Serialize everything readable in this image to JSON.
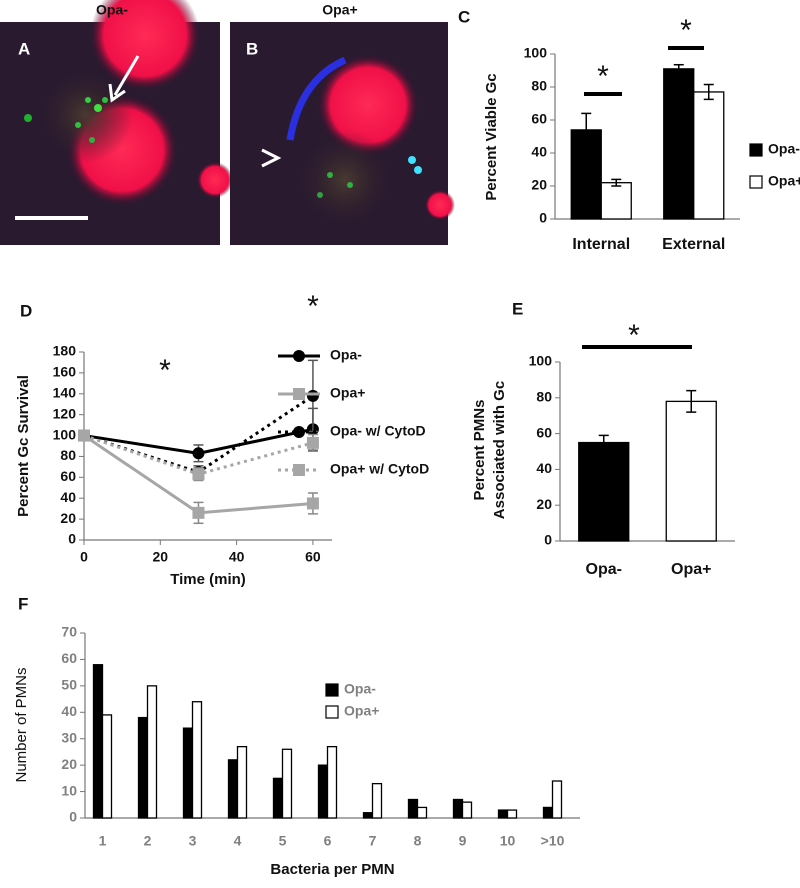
{
  "panels": [
    {
      "letter": "A",
      "title": "Opa-"
    },
    {
      "letter": "B",
      "title": "Opa+"
    }
  ],
  "chart_data": [
    {
      "type": "bar",
      "panel": "C",
      "ylabel": "Percent Viable Gc",
      "categories": [
        "Internal",
        "External"
      ],
      "series": [
        {
          "name": "Opa-",
          "color": "#000000",
          "values": [
            54,
            91
          ],
          "errors": [
            10,
            2.5
          ]
        },
        {
          "name": "Opa+",
          "color": "#ffffff",
          "values": [
            22,
            77
          ],
          "errors": [
            2,
            4.5
          ]
        }
      ],
      "ylim": [
        0,
        100
      ],
      "yticks": [
        0,
        20,
        40,
        60,
        80,
        100
      ],
      "legend": "right",
      "annotations": [
        "*",
        "*"
      ]
    },
    {
      "type": "line",
      "panel": "D",
      "ylabel": "Percent Gc Survival",
      "xlabel": "Time (min)",
      "x": [
        0,
        30,
        60
      ],
      "series": [
        {
          "name": "Opa-",
          "color": "#000000",
          "marker": "circle",
          "dashed": false,
          "values": [
            100,
            83,
            106
          ],
          "errors": [
            0,
            8,
            20
          ]
        },
        {
          "name": "Opa+",
          "color": "#a6a6a6",
          "marker": "square",
          "dashed": false,
          "values": [
            100,
            26,
            35
          ],
          "errors": [
            0,
            10,
            10
          ]
        },
        {
          "name": "Opa- w/ CytoD",
          "color": "#000000",
          "marker": "circle",
          "dashed": true,
          "values": [
            100,
            65,
            138
          ],
          "errors": [
            0,
            6,
            34
          ]
        },
        {
          "name": "Opa+ w/ CytoD",
          "color": "#a6a6a6",
          "marker": "square",
          "dashed": true,
          "values": [
            100,
            63,
            93
          ],
          "errors": [
            0,
            6,
            8
          ]
        }
      ],
      "xlim": [
        0,
        65
      ],
      "xticks": [
        0,
        20,
        40,
        60
      ],
      "ylim": [
        0,
        180
      ],
      "yticks": [
        0,
        20,
        40,
        60,
        80,
        100,
        120,
        140,
        160,
        180
      ],
      "legend": "right",
      "annotations": [
        "*",
        "*"
      ]
    },
    {
      "type": "bar",
      "panel": "E",
      "ylabel": [
        "Percent PMNs",
        "Associated with Gc"
      ],
      "categories": [
        "Opa-",
        "Opa+"
      ],
      "series": [
        {
          "colors": [
            "#000000",
            "#ffffff"
          ],
          "values": [
            55,
            78
          ],
          "errors": [
            4,
            6
          ]
        }
      ],
      "ylim": [
        0,
        100
      ],
      "yticks": [
        0,
        20,
        40,
        60,
        80,
        100
      ],
      "annotations": [
        "*"
      ]
    },
    {
      "type": "bar",
      "panel": "F",
      "ylabel": "Number of PMNs",
      "xlabel": "Bacteria per PMN",
      "categories": [
        "1",
        "2",
        "3",
        "4",
        "5",
        "6",
        "7",
        "8",
        "9",
        "10",
        ">10"
      ],
      "series": [
        {
          "name": "Opa-",
          "color": "#000000",
          "values": [
            58,
            38,
            34,
            22,
            15,
            20,
            2,
            7,
            7,
            3,
            4
          ]
        },
        {
          "name": "Opa+",
          "color": "#ffffff",
          "values": [
            39,
            50,
            44,
            27,
            26,
            27,
            13,
            4,
            6,
            3,
            14
          ]
        }
      ],
      "ylim": [
        0,
        70
      ],
      "yticks": [
        0,
        10,
        20,
        30,
        40,
        50,
        60,
        70
      ],
      "legend": "upper right"
    }
  ]
}
